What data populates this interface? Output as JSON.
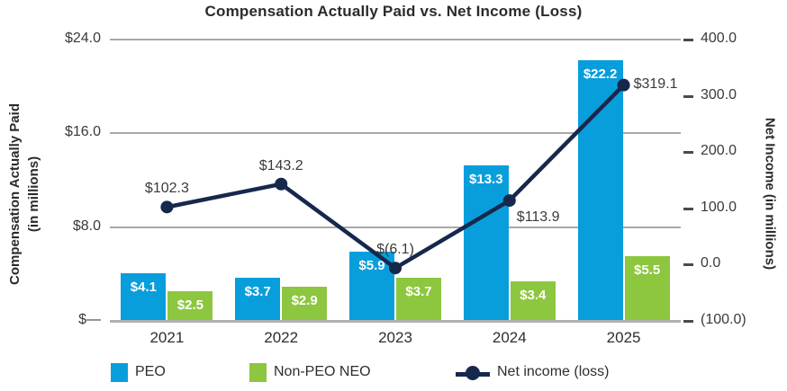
{
  "title": "Compensation Actually Paid vs. Net Income (Loss)",
  "colors": {
    "peo_blue": "#089edc",
    "non_peo_green": "#8dc63f",
    "net_income_navy": "#16284c",
    "gridline": "#a8a8a8",
    "axis_text": "#3a3a3a",
    "title_text": "#2b2b2b"
  },
  "left_axis": {
    "label_line1": "Compensation Actually Paid",
    "label_line2": "(in millions)",
    "ticks": [
      {
        "label": "$24.0",
        "value": 24
      },
      {
        "label": "$16.0",
        "value": 16
      },
      {
        "label": "$8.0",
        "value": 8
      },
      {
        "label": "$—",
        "value": 0
      }
    ]
  },
  "right_axis": {
    "label": "Net Income (in millions)",
    "ticks": [
      {
        "label": "400.0",
        "value": 400
      },
      {
        "label": "300.0",
        "value": 300
      },
      {
        "label": "200.0",
        "value": 200
      },
      {
        "label": "100.0",
        "value": 100
      },
      {
        "label": "0.0",
        "value": 0
      },
      {
        "label": "(100.0)",
        "value": -100
      }
    ]
  },
  "chart_data": {
    "type": "bar",
    "title": "Compensation Actually Paid vs. Net Income (Loss)",
    "categories": [
      "2021",
      "2022",
      "2023",
      "2024",
      "2025"
    ],
    "series": [
      {
        "name": "PEO",
        "type": "bar",
        "axis": "left",
        "values": [
          4.1,
          3.7,
          5.9,
          13.3,
          22.2
        ],
        "labels": [
          "$4.1",
          "$3.7",
          "$5.9",
          "$13.3",
          "$22.2"
        ],
        "color_key": "peo_blue"
      },
      {
        "name": "Non-PEO NEO",
        "type": "bar",
        "axis": "left",
        "values": [
          2.5,
          2.9,
          3.7,
          3.4,
          5.5
        ],
        "labels": [
          "$2.5",
          "$2.9",
          "$3.7",
          "$3.4",
          "$5.5"
        ],
        "color_key": "non_peo_green"
      },
      {
        "name": "Net income (loss)",
        "type": "line",
        "axis": "right",
        "values": [
          102.3,
          143.2,
          -6.1,
          113.9,
          319.1
        ],
        "labels": [
          "$102.3",
          "$143.2",
          "$(6.1)",
          "$113.9",
          "$319.1"
        ],
        "label_placement": [
          "above",
          "above",
          "above",
          "below-right",
          "right"
        ],
        "color_key": "net_income_navy"
      }
    ],
    "xlabel": "",
    "ylabel_left": "Compensation Actually Paid (in millions)",
    "ylabel_right": "Net Income (in millions)",
    "left_ylim": [
      0,
      24
    ],
    "right_ylim": [
      -100,
      400
    ],
    "grid": true,
    "legend_position": "bottom"
  },
  "legend": {
    "items": [
      {
        "label": "PEO",
        "swatch": "square",
        "color_key": "peo_blue"
      },
      {
        "label": "Non-PEO NEO",
        "swatch": "square",
        "color_key": "non_peo_green"
      },
      {
        "label": "Net income (loss)",
        "swatch": "line-dot",
        "color_key": "net_income_navy"
      }
    ]
  }
}
